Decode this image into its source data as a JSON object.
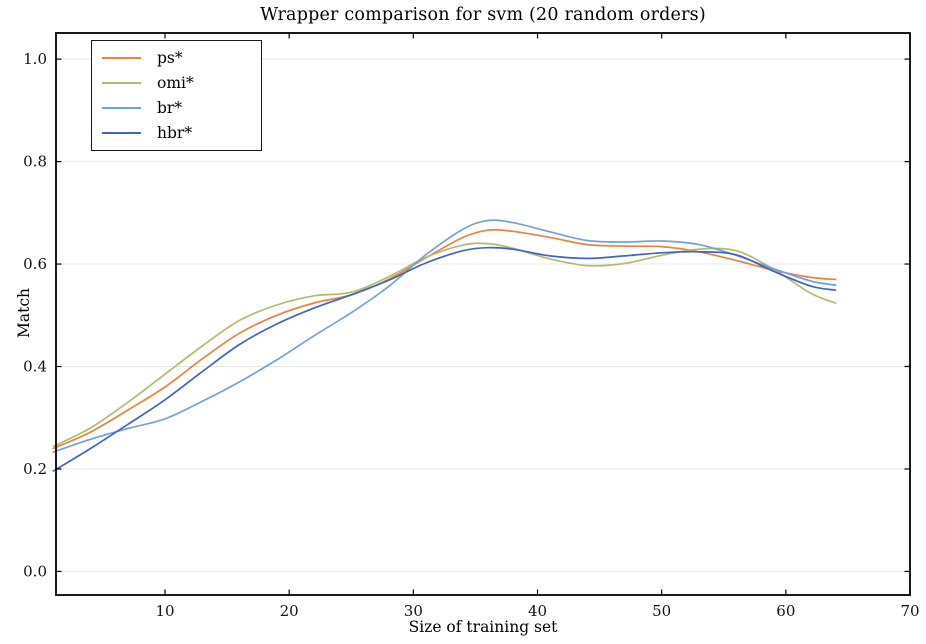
{
  "chart_data": {
    "type": "line",
    "title": "Wrapper comparison for svm (20 random orders)",
    "xlabel": "Size of training set",
    "ylabel": "Match",
    "xlim": [
      1.22,
      70
    ],
    "ylim": [
      -0.046,
      1.051
    ],
    "xticks": [
      10,
      20,
      30,
      40,
      50,
      60,
      70
    ],
    "xtick_labels": [
      "10",
      "20",
      "30",
      "40",
      "50",
      "60",
      "70"
    ],
    "yticks": [
      0.0,
      0.2,
      0.4,
      0.6,
      0.8,
      1.0
    ],
    "ytick_labels": [
      "0.0",
      "0.2",
      "0.4",
      "0.6",
      "0.8",
      "1.0"
    ],
    "grid": "horizontal",
    "grid_color": "#e8e8e8",
    "frame_color": "#000000",
    "background": "#ffffff",
    "legend_position": "upper-left",
    "x": [
      1,
      4,
      7,
      10,
      13,
      16,
      19,
      22,
      25,
      28,
      31,
      34,
      36,
      38,
      41,
      44,
      47,
      50,
      53,
      56,
      59,
      62,
      64
    ],
    "series": [
      {
        "name": "ps*",
        "color": "#E8843E",
        "values": [
          0.24,
          0.272,
          0.315,
          0.36,
          0.415,
          0.465,
          0.5,
          0.524,
          0.54,
          0.57,
          0.612,
          0.652,
          0.666,
          0.664,
          0.652,
          0.638,
          0.635,
          0.634,
          0.624,
          0.607,
          0.588,
          0.574,
          0.57
        ]
      },
      {
        "name": "omi*",
        "color": "#B2BC6E",
        "values": [
          0.244,
          0.28,
          0.33,
          0.385,
          0.44,
          0.49,
          0.52,
          0.538,
          0.545,
          0.575,
          0.613,
          0.637,
          0.64,
          0.631,
          0.61,
          0.597,
          0.601,
          0.617,
          0.629,
          0.626,
          0.59,
          0.543,
          0.524
        ]
      },
      {
        "name": "br*",
        "color": "#73A2D7",
        "values": [
          0.233,
          0.258,
          0.279,
          0.298,
          0.332,
          0.37,
          0.413,
          0.46,
          0.505,
          0.556,
          0.618,
          0.668,
          0.685,
          0.681,
          0.663,
          0.646,
          0.643,
          0.645,
          0.638,
          0.617,
          0.591,
          0.567,
          0.559
        ]
      },
      {
        "name": "hbr*",
        "color": "#4164C4",
        "values": [
          0.196,
          0.24,
          0.287,
          0.335,
          0.39,
          0.443,
          0.483,
          0.514,
          0.54,
          0.568,
          0.602,
          0.626,
          0.632,
          0.629,
          0.616,
          0.611,
          0.616,
          0.622,
          0.624,
          0.618,
          0.586,
          0.557,
          0.549
        ]
      }
    ]
  }
}
